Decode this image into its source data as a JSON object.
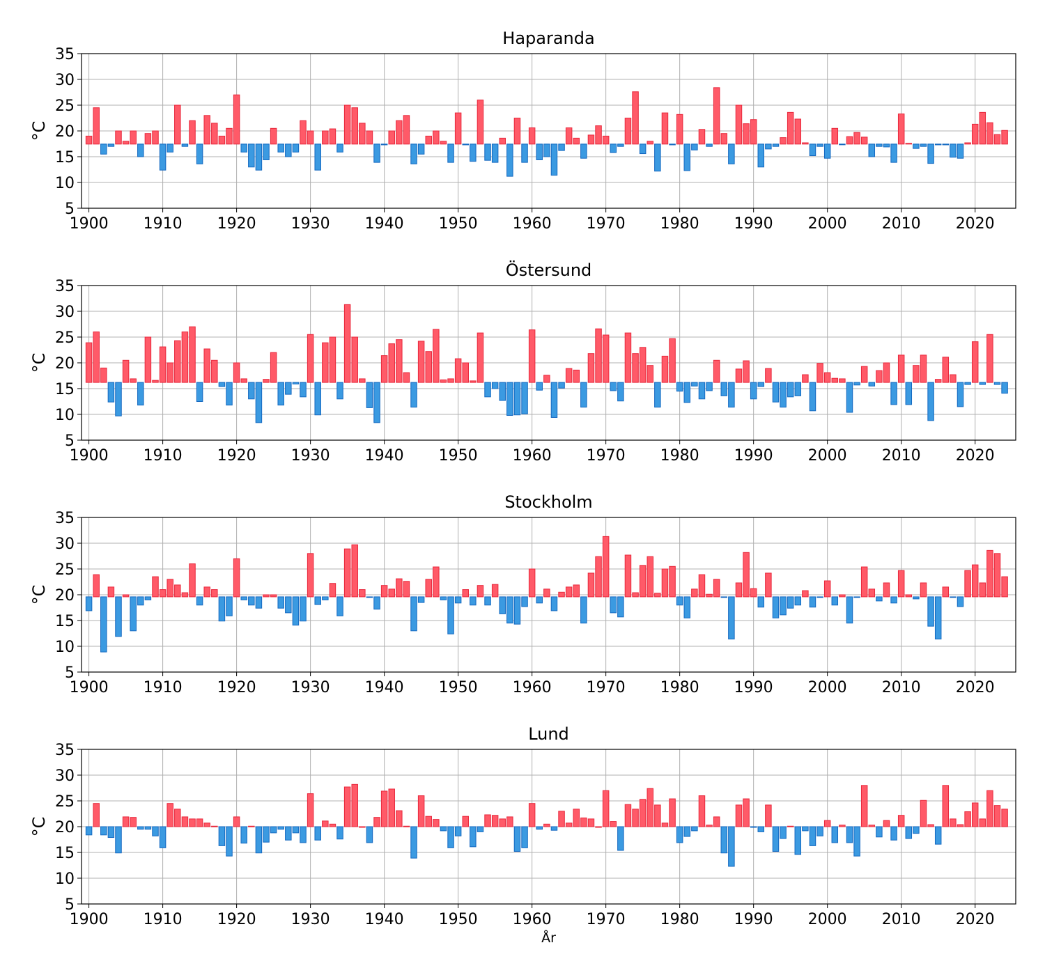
{
  "chart_data": {
    "type": "bar",
    "xlabel": "År",
    "ylabel": "°C",
    "ylim": [
      5,
      35
    ],
    "xlim": [
      1899,
      2025.5
    ],
    "yticks": [
      5,
      10,
      15,
      20,
      25,
      30,
      35
    ],
    "xticks": [
      1900,
      1910,
      1920,
      1930,
      1940,
      1950,
      1960,
      1970,
      1980,
      1990,
      2000,
      2010,
      2020
    ],
    "grid": true,
    "colors": {
      "above": "#ff5a68",
      "above_edge": "#e8283c",
      "below": "#3b9ae1",
      "below_edge": "#1468c0"
    },
    "x_start": 1900,
    "panels": [
      {
        "title": "Haparanda",
        "baseline": 17.45,
        "values": [
          19.0,
          24.5,
          15.5,
          17.0,
          20.0,
          18.0,
          20.0,
          15.0,
          19.5,
          20.0,
          12.4,
          15.9,
          25.0,
          17.0,
          22.0,
          13.6,
          23.0,
          21.5,
          19.0,
          20.5,
          27.0,
          15.9,
          13.0,
          12.4,
          14.4,
          20.5,
          15.9,
          15.0,
          15.9,
          22.0,
          20.0,
          12.4,
          20.0,
          20.4,
          15.9,
          25.0,
          24.5,
          21.5,
          20.0,
          13.9,
          17.3,
          20.0,
          22.0,
          23.0,
          13.6,
          15.5,
          19.0,
          20.0,
          18.0,
          13.9,
          23.5,
          17.3,
          14.1,
          26.0,
          14.3,
          13.9,
          18.6,
          11.2,
          22.5,
          13.9,
          20.6,
          14.4,
          15.0,
          11.4,
          16.2,
          20.6,
          18.6,
          14.7,
          19.2,
          21.0,
          19.0,
          15.8,
          17.0,
          22.5,
          27.6,
          15.6,
          18.0,
          12.2,
          23.5,
          17.3,
          23.2,
          12.3,
          16.3,
          20.3,
          17.0,
          28.4,
          19.5,
          13.6,
          25.0,
          21.4,
          22.2,
          13.0,
          16.5,
          17.0,
          18.7,
          23.6,
          22.3,
          17.7,
          15.2,
          17.0,
          14.7,
          20.5,
          17.4,
          18.9,
          19.7,
          18.8,
          15.0,
          17.0,
          16.9,
          13.9,
          23.3,
          17.6,
          16.6,
          17.0,
          13.7,
          17.3,
          17.3,
          14.9,
          14.7,
          17.7,
          21.3,
          23.6,
          21.6,
          19.3,
          20.1
        ]
      },
      {
        "title": "Östersund",
        "baseline": 16.2,
        "values": [
          23.9,
          26.0,
          19.0,
          12.4,
          9.7,
          20.5,
          16.9,
          11.8,
          25.0,
          16.6,
          23.1,
          20.0,
          24.3,
          26.0,
          27.0,
          12.5,
          22.7,
          20.5,
          15.4,
          11.8,
          20.0,
          16.9,
          13.0,
          8.4,
          16.8,
          22.0,
          11.8,
          13.9,
          15.9,
          13.4,
          25.5,
          9.9,
          23.9,
          25.0,
          13.0,
          31.3,
          25.0,
          16.9,
          11.3,
          8.4,
          21.4,
          23.7,
          24.5,
          18.1,
          11.4,
          24.2,
          22.2,
          26.5,
          16.7,
          16.9,
          20.8,
          20.0,
          16.5,
          25.8,
          13.4,
          15.0,
          12.7,
          9.8,
          9.9,
          10.1,
          26.4,
          14.7,
          17.6,
          9.4,
          15.1,
          18.9,
          18.6,
          11.4,
          21.8,
          26.6,
          25.4,
          14.6,
          12.6,
          25.8,
          21.8,
          23.0,
          19.5,
          11.4,
          21.3,
          24.7,
          14.5,
          12.3,
          15.5,
          13.0,
          14.6,
          20.5,
          13.6,
          11.4,
          18.8,
          20.4,
          13.0,
          15.4,
          18.9,
          12.4,
          11.4,
          13.4,
          13.6,
          17.7,
          10.7,
          19.9,
          18.1,
          17.0,
          16.9,
          10.4,
          15.7,
          19.3,
          15.5,
          18.5,
          20.0,
          11.9,
          21.5,
          11.9,
          19.5,
          21.5,
          8.8,
          16.8,
          21.1,
          17.7,
          11.5,
          15.8,
          24.1,
          15.8,
          25.5,
          15.8,
          14.1
        ]
      },
      {
        "title": "Stockholm",
        "baseline": 19.6,
        "values": [
          16.9,
          23.9,
          8.9,
          21.5,
          11.9,
          20.0,
          13.0,
          18.0,
          19.0,
          23.5,
          21.0,
          23.0,
          21.9,
          20.4,
          26.0,
          18.0,
          21.5,
          21.0,
          14.9,
          15.9,
          27.0,
          19.0,
          18.0,
          17.4,
          20.0,
          20.0,
          17.4,
          16.5,
          14.1,
          14.9,
          28.0,
          18.1,
          19.0,
          22.2,
          15.9,
          28.9,
          29.7,
          21.0,
          19.5,
          17.2,
          21.8,
          21.1,
          23.1,
          22.6,
          13.0,
          18.5,
          23.0,
          25.4,
          19.0,
          12.4,
          18.4,
          21.0,
          18.0,
          21.8,
          18.0,
          22.0,
          16.3,
          14.5,
          14.3,
          17.7,
          25.0,
          18.4,
          21.1,
          16.9,
          20.5,
          21.5,
          21.9,
          14.5,
          24.2,
          27.4,
          31.3,
          16.5,
          15.7,
          27.7,
          20.4,
          25.7,
          27.4,
          20.3,
          25.0,
          25.5,
          18.0,
          15.5,
          21.1,
          23.9,
          20.1,
          23.0,
          19.5,
          11.4,
          22.3,
          28.2,
          21.2,
          17.6,
          24.2,
          15.5,
          16.1,
          17.4,
          18.0,
          20.8,
          17.6,
          19.5,
          22.7,
          18.0,
          20.0,
          14.5,
          19.5,
          25.4,
          21.1,
          18.8,
          22.3,
          18.4,
          24.7,
          20.0,
          19.2,
          22.3,
          13.9,
          11.4,
          21.5,
          19.5,
          17.7,
          24.7,
          25.8,
          22.3,
          28.6,
          28.0,
          23.5
        ]
      },
      {
        "title": "Lund",
        "baseline": 20.0,
        "values": [
          18.4,
          24.5,
          18.4,
          17.9,
          14.9,
          21.9,
          21.8,
          19.5,
          19.5,
          18.2,
          15.9,
          24.5,
          23.4,
          21.9,
          21.5,
          21.5,
          20.7,
          20.1,
          16.3,
          14.3,
          21.9,
          16.8,
          20.1,
          14.9,
          17.0,
          18.8,
          19.5,
          17.4,
          18.8,
          16.9,
          26.4,
          17.4,
          21.1,
          20.5,
          17.6,
          27.7,
          28.2,
          20.0,
          16.9,
          21.8,
          26.9,
          27.3,
          23.1,
          20.1,
          13.9,
          26.0,
          22.0,
          21.4,
          19.2,
          15.9,
          18.2,
          22.0,
          16.1,
          19.0,
          22.3,
          22.2,
          21.5,
          21.9,
          15.2,
          15.9,
          24.5,
          19.5,
          20.5,
          19.3,
          23.0,
          20.7,
          23.4,
          21.7,
          21.5,
          20.0,
          27.0,
          21.0,
          15.4,
          24.3,
          23.4,
          25.3,
          27.4,
          24.2,
          20.7,
          25.4,
          16.9,
          18.1,
          19.2,
          26.0,
          20.3,
          21.9,
          14.9,
          12.3,
          24.2,
          25.4,
          19.9,
          19.0,
          24.2,
          15.2,
          17.7,
          20.1,
          14.6,
          19.2,
          16.3,
          18.2,
          21.2,
          16.9,
          20.3,
          16.9,
          14.3,
          28.0,
          20.3,
          18.0,
          21.2,
          17.4,
          22.2,
          17.7,
          18.7,
          25.1,
          20.4,
          16.6,
          28.0,
          21.5,
          20.4,
          22.9,
          24.6,
          21.5,
          27.0,
          24.1,
          23.4
        ]
      }
    ]
  }
}
